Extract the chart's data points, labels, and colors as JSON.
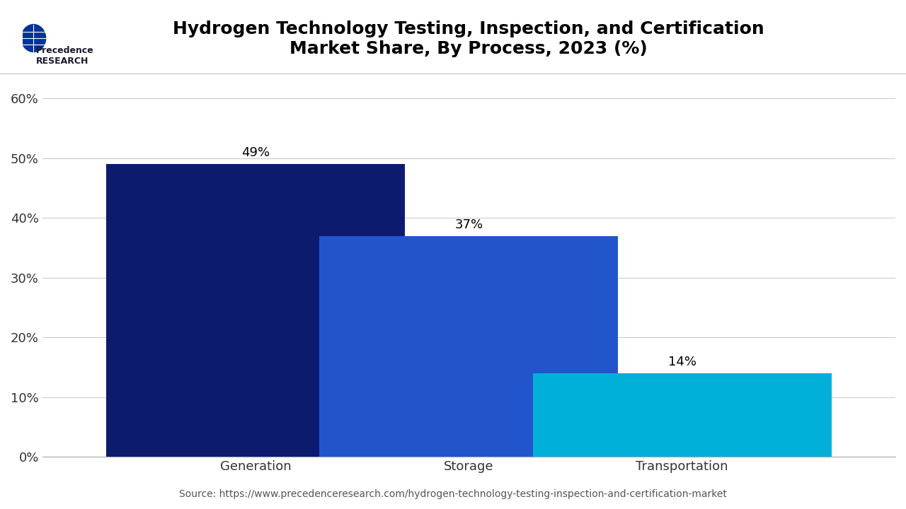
{
  "title": "Hydrogen Technology Testing, Inspection, and Certification\nMarket Share, By Process, 2023 (%)",
  "categories": [
    "Generation",
    "Storage",
    "Transportation"
  ],
  "values": [
    49,
    37,
    14
  ],
  "bar_colors": [
    "#0d1b6e",
    "#2255cc",
    "#00b0d8"
  ],
  "labels": [
    "49%",
    "37%",
    "14%"
  ],
  "ylim": [
    0,
    65
  ],
  "yticks": [
    0,
    10,
    20,
    30,
    40,
    50,
    60
  ],
  "ytick_labels": [
    "0%",
    "10%",
    "20%",
    "30%",
    "40%",
    "50%",
    "60%"
  ],
  "source_text": "Source: https://www.precedenceresearch.com/hydrogen-technology-testing-inspection-and-certification-market",
  "background_color": "#ffffff",
  "title_fontsize": 18,
  "label_fontsize": 13,
  "tick_fontsize": 13,
  "source_fontsize": 10,
  "bar_width": 0.35
}
